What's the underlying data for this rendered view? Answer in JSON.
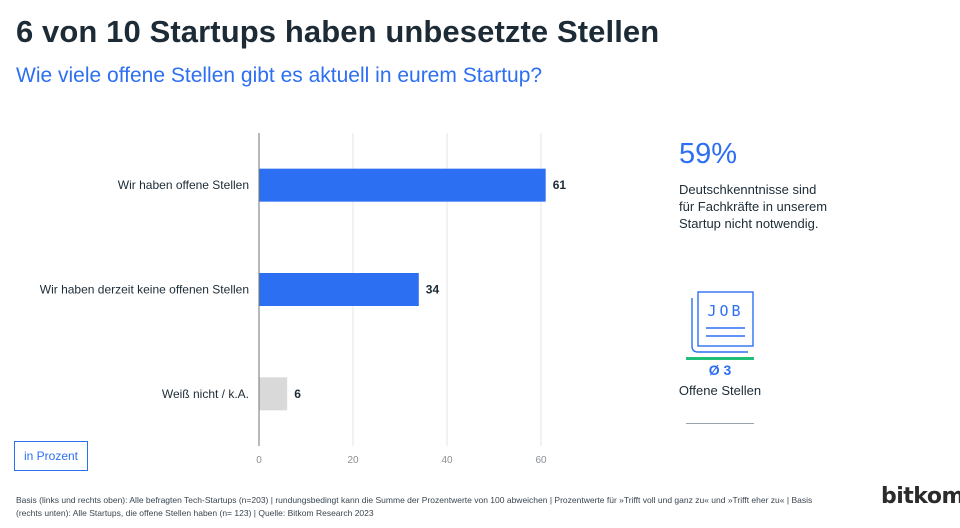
{
  "header": {
    "title": "6 von 10 Startups haben unbesetzte Stellen",
    "subtitle": "Wie viele offene Stellen gibt es aktuell in eurem Startup?"
  },
  "chart_data": {
    "type": "bar",
    "orientation": "horizontal",
    "categories": [
      "Wir haben offene Stellen",
      "Wir haben derzeit keine offenen Stellen",
      "Weiß nicht / k.A."
    ],
    "values": [
      61,
      34,
      6
    ],
    "value_labels": [
      "61",
      "34",
      "6"
    ],
    "bar_colors": [
      "#2d6ff2",
      "#2d6ff2",
      "#d9d9d9"
    ],
    "xlim": [
      0,
      60
    ],
    "xticks": [
      0,
      20,
      40,
      60
    ],
    "xtick_labels": [
      "0",
      "20",
      "40",
      "60"
    ],
    "grid": true,
    "unit_label": "in Prozent"
  },
  "side_stat": {
    "value": "59%",
    "text": "Deutschkenntnisse sind für Fachkräfte in unserem Startup nicht notwendig."
  },
  "job_panel": {
    "icon": "job-newspaper-icon",
    "icon_text": "JOB",
    "average": "Ø 3",
    "label": "Offene Stellen"
  },
  "footnote": "Basis (links und rechts oben): Alle befragten Tech-Startups (n=203) | rundungsbedingt kann die Summe der Prozentwerte von 100 abweichen | Prozentwerte für »Trifft voll und ganz zu« und »Trifft eher zu« | Basis (rechts unten): Alle Startups, die offene Stellen haben (n= 123) | Quelle: Bitkom Research 2023",
  "brand": "bitkom",
  "colors": {
    "accent": "#2d6ff2",
    "green": "#21c07a",
    "neutral": "#d9d9d9"
  }
}
